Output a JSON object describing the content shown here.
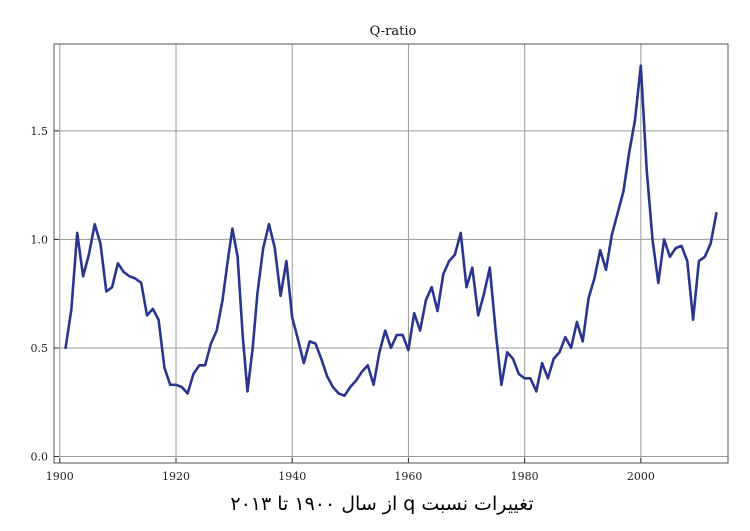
{
  "chart_data": {
    "type": "line",
    "title": "Q-ratio",
    "caption": "تغییرات نسبت q از سال ۱۹۰۰ تا ۲۰۱۳",
    "xlabel": "",
    "ylabel": "",
    "xlim": [
      1899,
      2015
    ],
    "ylim": [
      -0.03,
      1.9
    ],
    "grid": true,
    "legend": "none",
    "colors": {
      "line": "#2b3590",
      "grid": "#9a9a9a",
      "frame": "#555555"
    },
    "x_ticks": [
      1900,
      1920,
      1940,
      1960,
      1980,
      2000
    ],
    "x_tick_labels": [
      "1900",
      "1920",
      "1940",
      "1960",
      "1980",
      "2000"
    ],
    "y_ticks": [
      0.0,
      0.5,
      1.0,
      1.5
    ],
    "y_tick_labels": [
      "0.0",
      "0.5",
      "1.0",
      "1.5"
    ],
    "series": [
      {
        "name": "Q-ratio",
        "points": [
          [
            1901,
            0.5
          ],
          [
            1902,
            0.68
          ],
          [
            1903,
            1.03
          ],
          [
            1904,
            0.83
          ],
          [
            1905,
            0.93
          ],
          [
            1906,
            1.07
          ],
          [
            1907,
            0.98
          ],
          [
            1908,
            0.76
          ],
          [
            1909,
            0.78
          ],
          [
            1910,
            0.89
          ],
          [
            1911,
            0.85
          ],
          [
            1912,
            0.83
          ],
          [
            1913,
            0.82
          ],
          [
            1914,
            0.8
          ],
          [
            1915,
            0.65
          ],
          [
            1916,
            0.68
          ],
          [
            1917,
            0.63
          ],
          [
            1918,
            0.41
          ],
          [
            1919,
            0.33
          ],
          [
            1920,
            0.33
          ],
          [
            1921,
            0.32
          ],
          [
            1922,
            0.29
          ],
          [
            1923,
            0.38
          ],
          [
            1924,
            0.42
          ],
          [
            1925,
            0.42
          ],
          [
            1926,
            0.52
          ],
          [
            1927,
            0.58
          ],
          [
            1928,
            0.72
          ],
          [
            1929,
            0.92
          ],
          [
            1929.7,
            1.05
          ],
          [
            1930.6,
            0.92
          ],
          [
            1931.5,
            0.55
          ],
          [
            1932.3,
            0.3
          ],
          [
            1933.2,
            0.5
          ],
          [
            1934,
            0.75
          ],
          [
            1935,
            0.96
          ],
          [
            1936,
            1.07
          ],
          [
            1937,
            0.96
          ],
          [
            1938,
            0.74
          ],
          [
            1939,
            0.9
          ],
          [
            1940,
            0.64
          ],
          [
            1941,
            0.54
          ],
          [
            1942,
            0.43
          ],
          [
            1943,
            0.53
          ],
          [
            1944,
            0.52
          ],
          [
            1945,
            0.45
          ],
          [
            1946,
            0.37
          ],
          [
            1947,
            0.32
          ],
          [
            1948,
            0.29
          ],
          [
            1949,
            0.28
          ],
          [
            1950,
            0.32
          ],
          [
            1951,
            0.35
          ],
          [
            1952,
            0.39
          ],
          [
            1953,
            0.42
          ],
          [
            1954,
            0.33
          ],
          [
            1955,
            0.48
          ],
          [
            1956,
            0.58
          ],
          [
            1957,
            0.5
          ],
          [
            1958,
            0.56
          ],
          [
            1959,
            0.56
          ],
          [
            1960,
            0.49
          ],
          [
            1961,
            0.66
          ],
          [
            1962,
            0.58
          ],
          [
            1963,
            0.72
          ],
          [
            1964,
            0.78
          ],
          [
            1965,
            0.67
          ],
          [
            1966,
            0.84
          ],
          [
            1967,
            0.9
          ],
          [
            1968,
            0.93
          ],
          [
            1969,
            1.03
          ],
          [
            1970,
            0.78
          ],
          [
            1971,
            0.87
          ],
          [
            1972,
            0.65
          ],
          [
            1973,
            0.75
          ],
          [
            1974,
            0.87
          ],
          [
            1975,
            0.58
          ],
          [
            1976,
            0.33
          ],
          [
            1977,
            0.48
          ],
          [
            1978,
            0.45
          ],
          [
            1979,
            0.38
          ],
          [
            1980,
            0.36
          ],
          [
            1981,
            0.36
          ],
          [
            1982,
            0.3
          ],
          [
            1983,
            0.43
          ],
          [
            1984,
            0.36
          ],
          [
            1985,
            0.45
          ],
          [
            1986,
            0.48
          ],
          [
            1987,
            0.55
          ],
          [
            1988,
            0.5
          ],
          [
            1989,
            0.62
          ],
          [
            1990,
            0.53
          ],
          [
            1991,
            0.73
          ],
          [
            1992,
            0.82
          ],
          [
            1993,
            0.95
          ],
          [
            1994,
            0.86
          ],
          [
            1995,
            1.02
          ],
          [
            1996,
            1.12
          ],
          [
            1997,
            1.22
          ],
          [
            1998,
            1.4
          ],
          [
            1999,
            1.55
          ],
          [
            2000,
            1.8
          ],
          [
            2001,
            1.32
          ],
          [
            2002,
            1.0
          ],
          [
            2003,
            0.8
          ],
          [
            2004,
            1.0
          ],
          [
            2005,
            0.92
          ],
          [
            2006,
            0.96
          ],
          [
            2007,
            0.97
          ],
          [
            2008,
            0.9
          ],
          [
            2009,
            0.63
          ],
          [
            2010,
            0.9
          ],
          [
            2011,
            0.92
          ],
          [
            2012,
            0.98
          ],
          [
            2013,
            1.12
          ]
        ]
      }
    ]
  }
}
